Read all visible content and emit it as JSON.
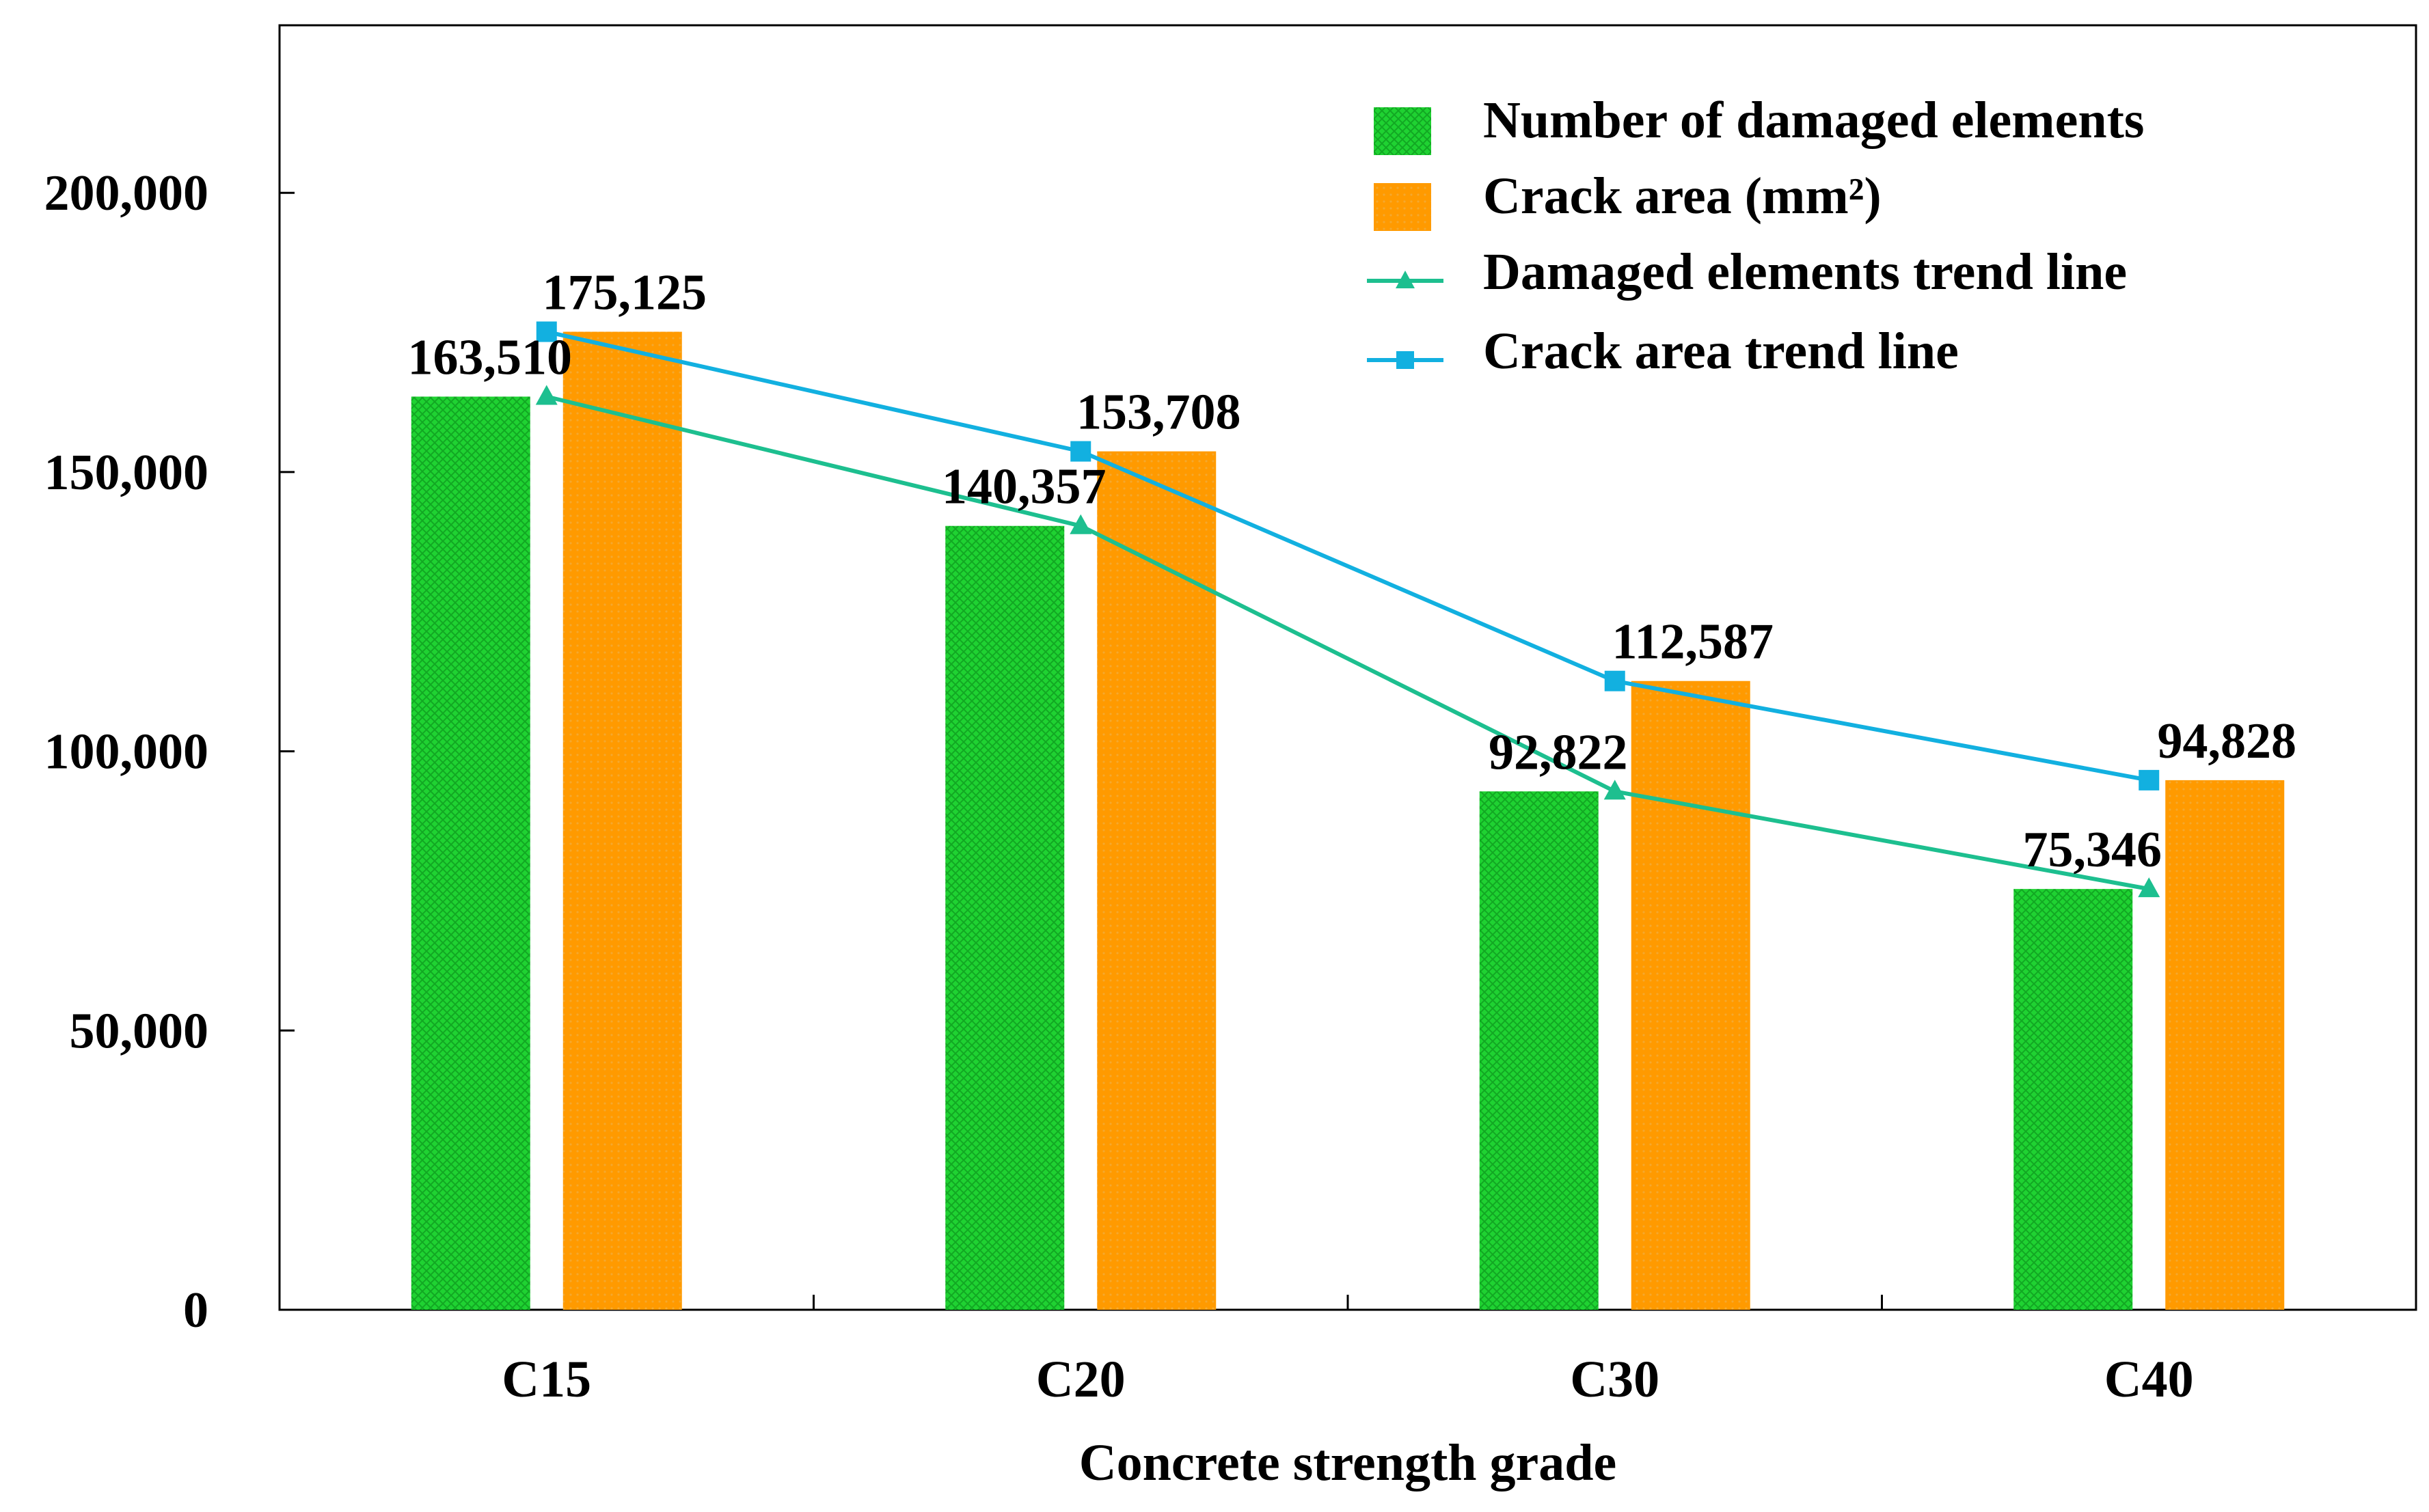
{
  "chart_data": {
    "type": "bar",
    "categories": [
      "C15",
      "C20",
      "C30",
      "C40"
    ],
    "series": [
      {
        "name": "Number of damaged elements",
        "kind": "bar",
        "color": "#22C832",
        "values": [
          163510,
          140357,
          92822,
          75346
        ],
        "labels": [
          "163,510",
          "140,357",
          "92,822",
          "75,346"
        ]
      },
      {
        "name": "Crack area (mm²)",
        "kind": "bar",
        "color": "#FF9900",
        "values": [
          175125,
          153708,
          112587,
          94828
        ],
        "labels": [
          "175,125",
          "153,708",
          "112,587",
          "94,828"
        ]
      },
      {
        "name": "Damaged elements trend line",
        "kind": "line",
        "marker": "triangle",
        "color": "#1DBF8F",
        "values": [
          163510,
          140357,
          92822,
          75346
        ]
      },
      {
        "name": "Crack area trend line",
        "kind": "line",
        "marker": "square",
        "color": "#12B0E0",
        "values": [
          175125,
          153708,
          112587,
          94828
        ]
      }
    ],
    "title": "",
    "xlabel": "Concrete strength grade",
    "ylabel": "",
    "ylim": [
      0,
      230000
    ],
    "yticks": [
      0,
      50000,
      100000,
      150000,
      200000
    ],
    "ytick_labels": [
      "0",
      "50,000",
      "100,000",
      "150,000",
      "200,000"
    ],
    "grid": false,
    "legend_position": "top-right"
  }
}
